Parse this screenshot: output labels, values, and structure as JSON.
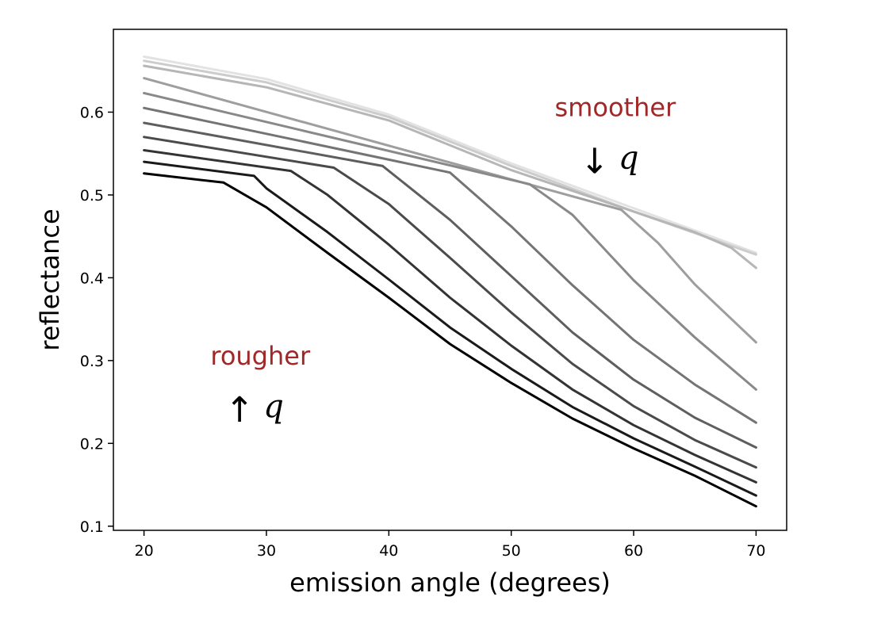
{
  "chart_data": {
    "type": "line",
    "title": "",
    "xlabel": "emission angle (degrees)",
    "ylabel": "reflectance",
    "xlim": [
      17.5,
      72.5
    ],
    "ylim": [
      0.095,
      0.7
    ],
    "xticks": [
      20,
      30,
      40,
      50,
      60,
      70
    ],
    "yticks": [
      0.1,
      0.2,
      0.3,
      0.4,
      0.5,
      0.6
    ],
    "ytick_labels": [
      "0.1",
      "0.2",
      "0.3",
      "0.4",
      "0.5",
      "0.6"
    ],
    "grid": false,
    "legend": "none",
    "colors": {
      "annotation": "#a02828",
      "axis": "#000000",
      "series": [
        "#000000",
        "#1a1a1a",
        "#333333",
        "#4a4a4a",
        "#5e5e5e",
        "#747474",
        "#898989",
        "#9e9e9e",
        "#b6b6b6",
        "#cccccc",
        "#e2e2e2"
      ]
    },
    "annotations": [
      {
        "text": "smoother",
        "arrow": "↓",
        "symbol": "q",
        "x": 58.5,
        "y": 0.595
      },
      {
        "text": "rougher",
        "arrow": "↑",
        "symbol": "q",
        "x": 29.5,
        "y": 0.295
      }
    ],
    "series": [
      {
        "x": [
          20,
          26.5,
          30,
          35,
          40,
          45,
          50,
          55,
          60,
          65,
          70
        ],
        "y": [
          0.526,
          0.515,
          0.485,
          0.43,
          0.376,
          0.32,
          0.273,
          0.23,
          0.194,
          0.161,
          0.124
        ]
      },
      {
        "x": [
          20,
          29,
          30,
          35,
          40,
          45,
          50,
          55,
          60,
          65,
          70
        ],
        "y": [
          0.54,
          0.523,
          0.508,
          0.455,
          0.398,
          0.34,
          0.29,
          0.244,
          0.206,
          0.172,
          0.137
        ]
      },
      {
        "x": [
          20,
          32,
          35,
          40,
          45,
          50,
          55,
          60,
          65,
          70
        ],
        "y": [
          0.554,
          0.529,
          0.5,
          0.44,
          0.376,
          0.318,
          0.265,
          0.222,
          0.186,
          0.153
        ]
      },
      {
        "x": [
          20,
          35.5,
          40,
          45,
          50,
          55,
          60,
          65,
          70
        ],
        "y": [
          0.57,
          0.533,
          0.489,
          0.424,
          0.358,
          0.296,
          0.245,
          0.204,
          0.171
        ]
      },
      {
        "x": [
          20,
          39.5,
          45,
          50,
          55,
          60,
          65,
          70
        ],
        "y": [
          0.587,
          0.535,
          0.47,
          0.402,
          0.334,
          0.277,
          0.231,
          0.195
        ]
      },
      {
        "x": [
          20,
          45,
          50,
          55,
          60,
          65,
          70
        ],
        "y": [
          0.605,
          0.527,
          0.462,
          0.391,
          0.325,
          0.271,
          0.225
        ]
      },
      {
        "x": [
          20,
          51.5,
          55,
          60,
          65,
          70
        ],
        "y": [
          0.623,
          0.513,
          0.476,
          0.397,
          0.328,
          0.265
        ]
      },
      {
        "x": [
          20,
          59,
          62,
          65,
          70
        ],
        "y": [
          0.641,
          0.482,
          0.442,
          0.392,
          0.322
        ]
      },
      {
        "x": [
          20,
          30,
          40,
          50,
          60,
          65,
          68,
          70
        ],
        "y": [
          0.656,
          0.63,
          0.59,
          0.53,
          0.48,
          0.455,
          0.436,
          0.412
        ]
      },
      {
        "x": [
          20,
          30,
          40,
          50,
          60,
          70
        ],
        "y": [
          0.662,
          0.636,
          0.594,
          0.535,
          0.48,
          0.428
        ]
      },
      {
        "x": [
          20,
          30,
          40,
          50,
          60,
          70
        ],
        "y": [
          0.667,
          0.64,
          0.597,
          0.538,
          0.484,
          0.43
        ]
      }
    ]
  }
}
